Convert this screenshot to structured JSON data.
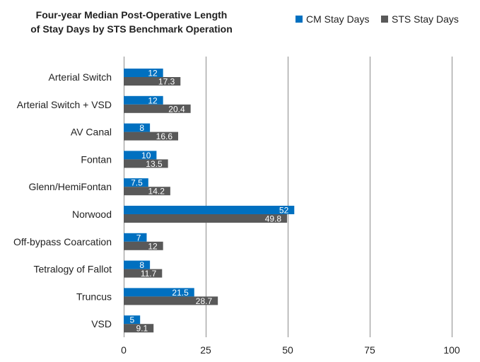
{
  "chart_data": {
    "type": "bar",
    "orientation": "horizontal",
    "title_lines": [
      "Four-year Median Post-Operative Length",
      "of Stay Days by STS Benchmark Operation"
    ],
    "categories": [
      "Arterial Switch",
      "Arterial Switch + VSD",
      "AV Canal",
      "Fontan",
      "Glenn/HemiFontan",
      "Norwood",
      "Off-bypass Coarcation",
      "Tetralogy of Fallot",
      "Truncus",
      "VSD"
    ],
    "series": [
      {
        "name": "CM Stay Days",
        "color": "#0070c0",
        "values": [
          12,
          12,
          8,
          10,
          7.5,
          52,
          7,
          8,
          21.5,
          5
        ],
        "labels": [
          "12",
          "12",
          "8",
          "10",
          "7.5",
          "52",
          "7",
          "8",
          "21.5",
          "5"
        ]
      },
      {
        "name": "STS Stay Days",
        "color": "#595959",
        "values": [
          17.3,
          20.4,
          16.6,
          13.5,
          14.2,
          49.8,
          12,
          11.7,
          28.7,
          9.1
        ],
        "labels": [
          "17.3",
          "20.4",
          "16.6",
          "13.5",
          "14.2",
          "49.8",
          "12",
          "11.7",
          "28.7",
          "9.1"
        ]
      }
    ],
    "xlim": [
      0,
      100
    ],
    "xticks": [
      "0",
      "25",
      "50",
      "75",
      "100"
    ],
    "xtick_values": [
      0,
      25,
      50,
      75,
      100
    ],
    "grid": true,
    "legend_position": "top-right"
  }
}
